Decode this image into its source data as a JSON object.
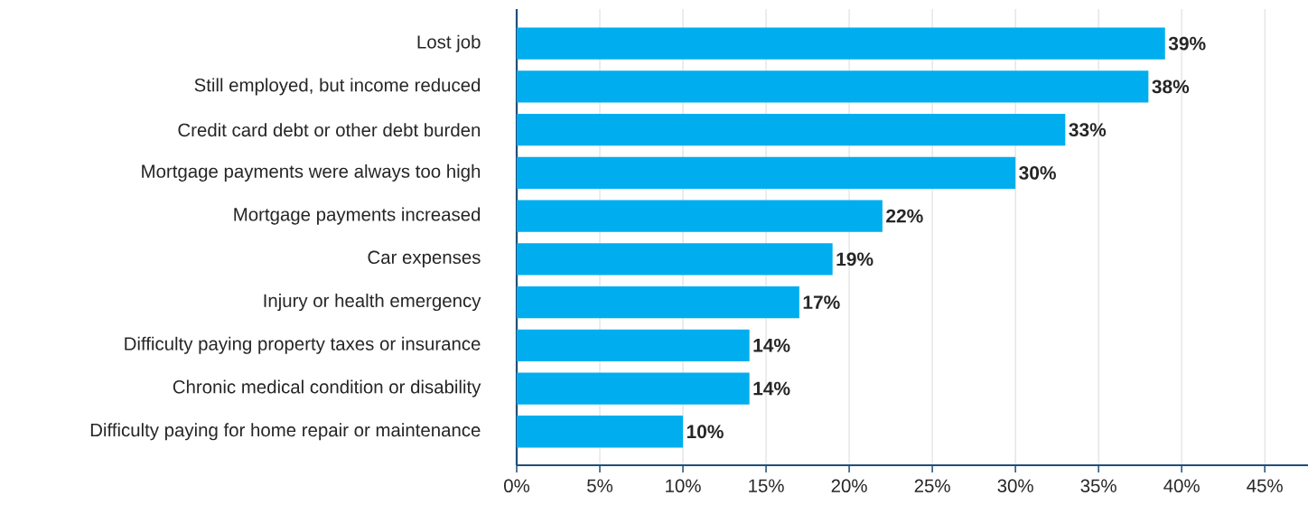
{
  "chart_data": {
    "type": "bar",
    "orientation": "horizontal",
    "categories": [
      "Lost job",
      "Still employed, but income reduced",
      "Credit card debt or other debt burden",
      "Mortgage payments were always too high",
      "Mortgage payments increased",
      "Car expenses",
      "Injury or health emergency",
      "Difficulty paying property taxes or insurance",
      "Chronic medical condition or disability",
      "Difficulty paying for home repair or maintenance"
    ],
    "values": [
      39,
      38,
      33,
      30,
      22,
      19,
      17,
      14,
      14,
      10
    ],
    "value_labels": [
      "39%",
      "38%",
      "33%",
      "30%",
      "22%",
      "19%",
      "17%",
      "14%",
      "14%",
      "10%"
    ],
    "color": "#00aeef",
    "xlim": [
      0,
      47.6
    ],
    "xticks": [
      {
        "value": 0,
        "label": "0%"
      },
      {
        "value": 5,
        "label": "5%"
      },
      {
        "value": 10,
        "label": "10%"
      },
      {
        "value": 15,
        "label": "15%"
      },
      {
        "value": 20,
        "label": "20%"
      },
      {
        "value": 25,
        "label": "25%"
      },
      {
        "value": 30,
        "label": "30%"
      },
      {
        "value": 35,
        "label": "35%"
      },
      {
        "value": 40,
        "label": "40%"
      },
      {
        "value": 45,
        "label": "45%"
      }
    ],
    "grid": "x"
  }
}
